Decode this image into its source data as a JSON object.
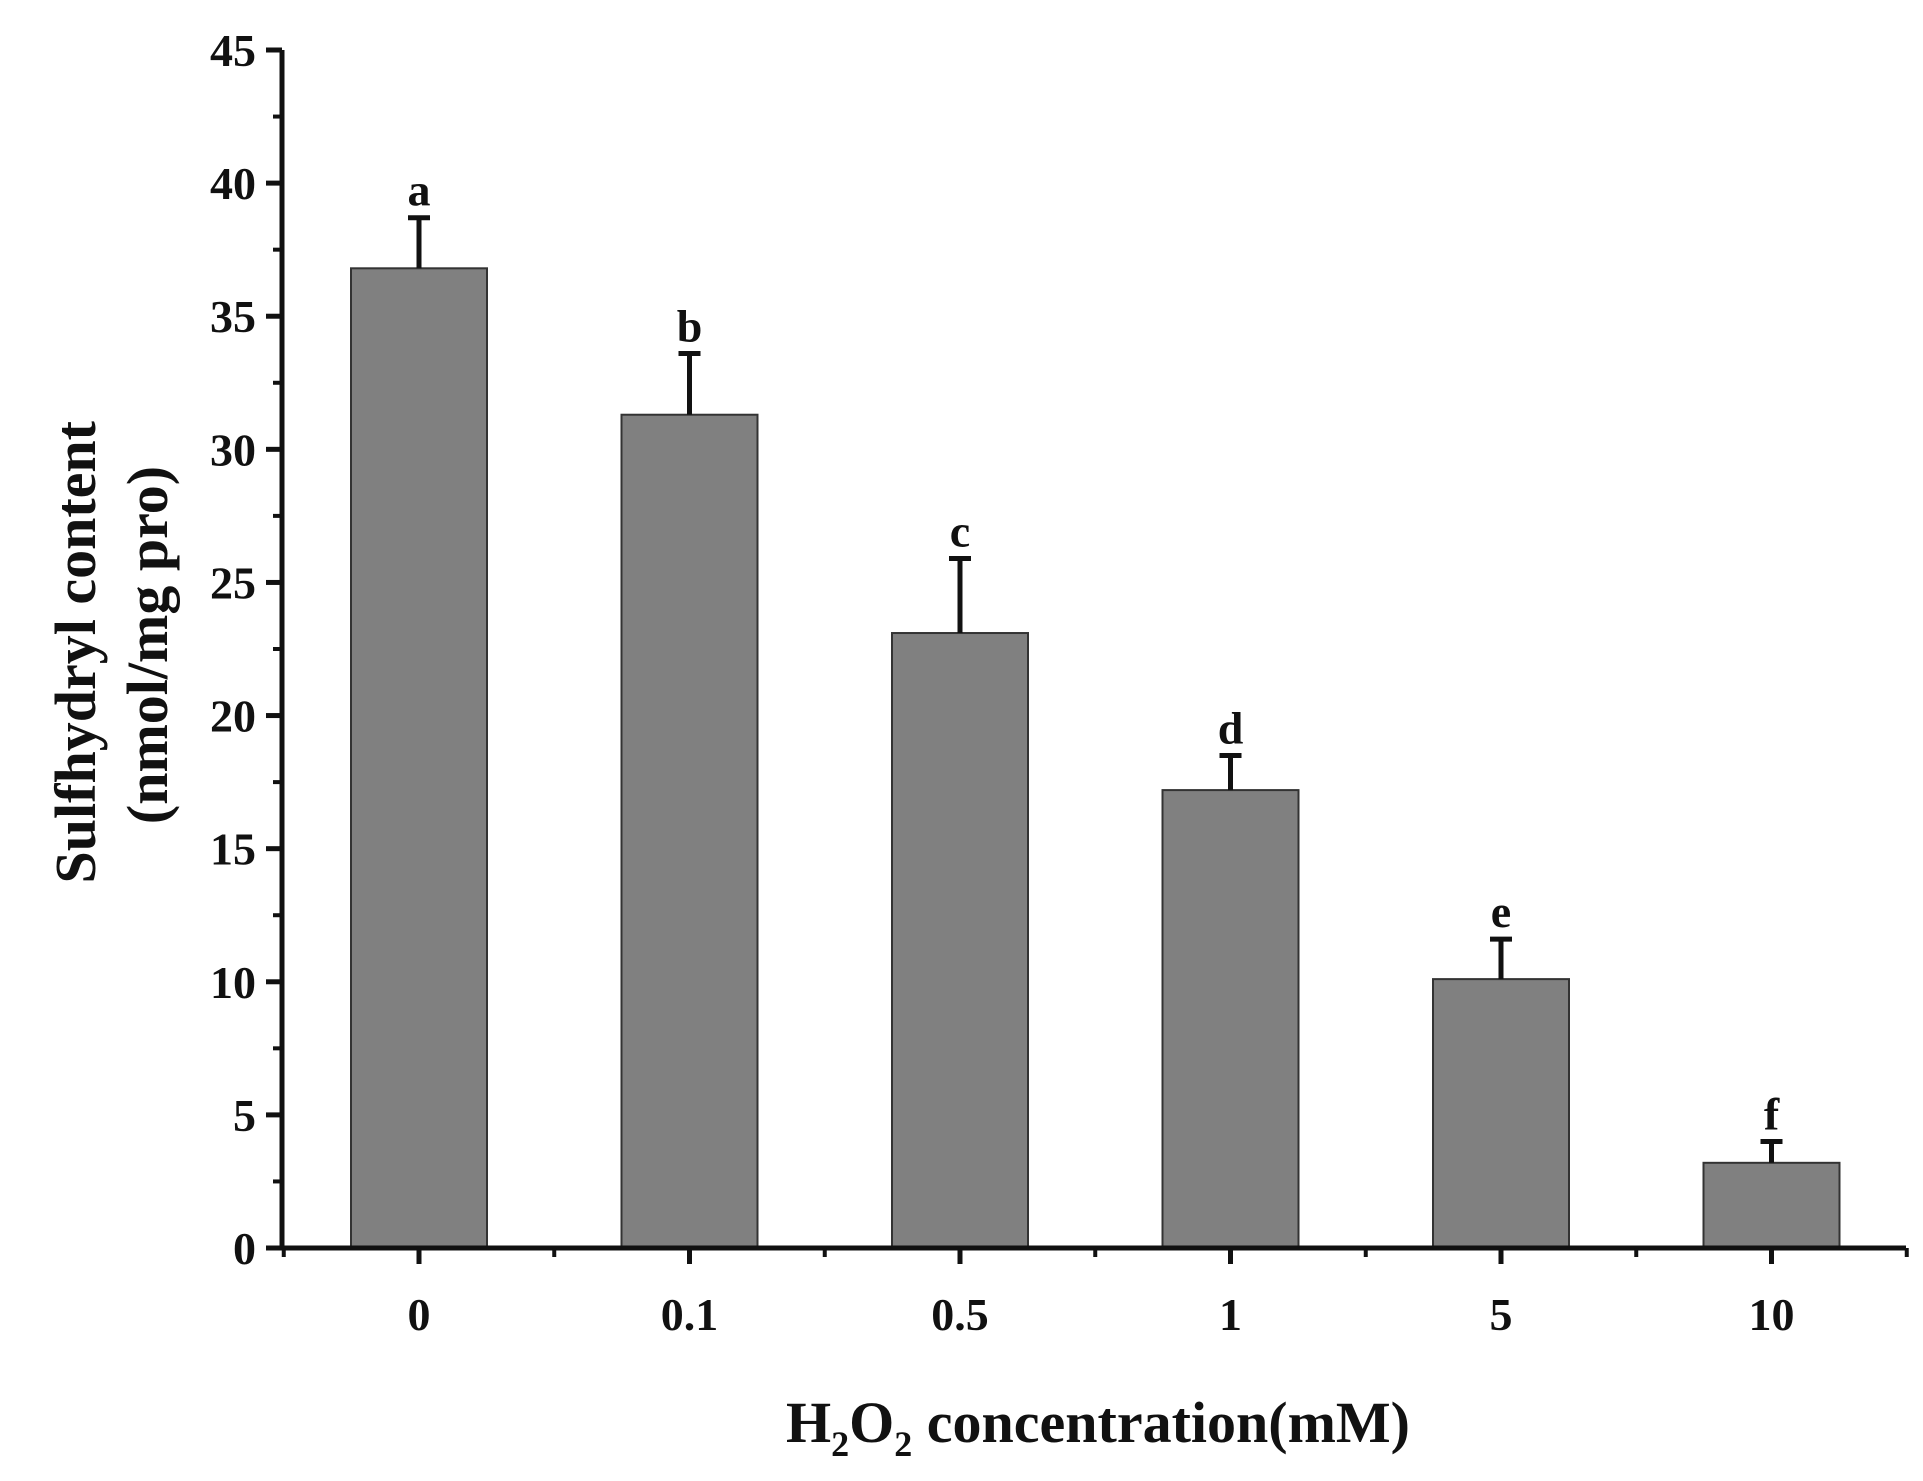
{
  "chart_data": {
    "type": "bar",
    "categories": [
      "0",
      "0.1",
      "0.5",
      "1",
      "5",
      "10"
    ],
    "values": [
      36.8,
      31.3,
      23.1,
      17.2,
      10.1,
      3.2
    ],
    "errors": [
      1.9,
      2.3,
      2.8,
      1.3,
      1.5,
      0.8
    ],
    "significance": [
      "a",
      "b",
      "c",
      "d",
      "e",
      "f"
    ],
    "ylim": [
      0,
      45
    ],
    "yticks": [
      "0",
      "5",
      "10",
      "15",
      "20",
      "25",
      "30",
      "35",
      "40",
      "45"
    ],
    "xlabel": {
      "prefix": "H",
      "sub1": "2",
      "mid": "O",
      "sub2": "2",
      "suffix": " concentration(mM)"
    },
    "ylabel": {
      "line1": "Sulfhydryl content",
      "line2": "(nmol/mg pro)"
    },
    "bar_color": "#808080",
    "grid": false,
    "legend": "none"
  }
}
